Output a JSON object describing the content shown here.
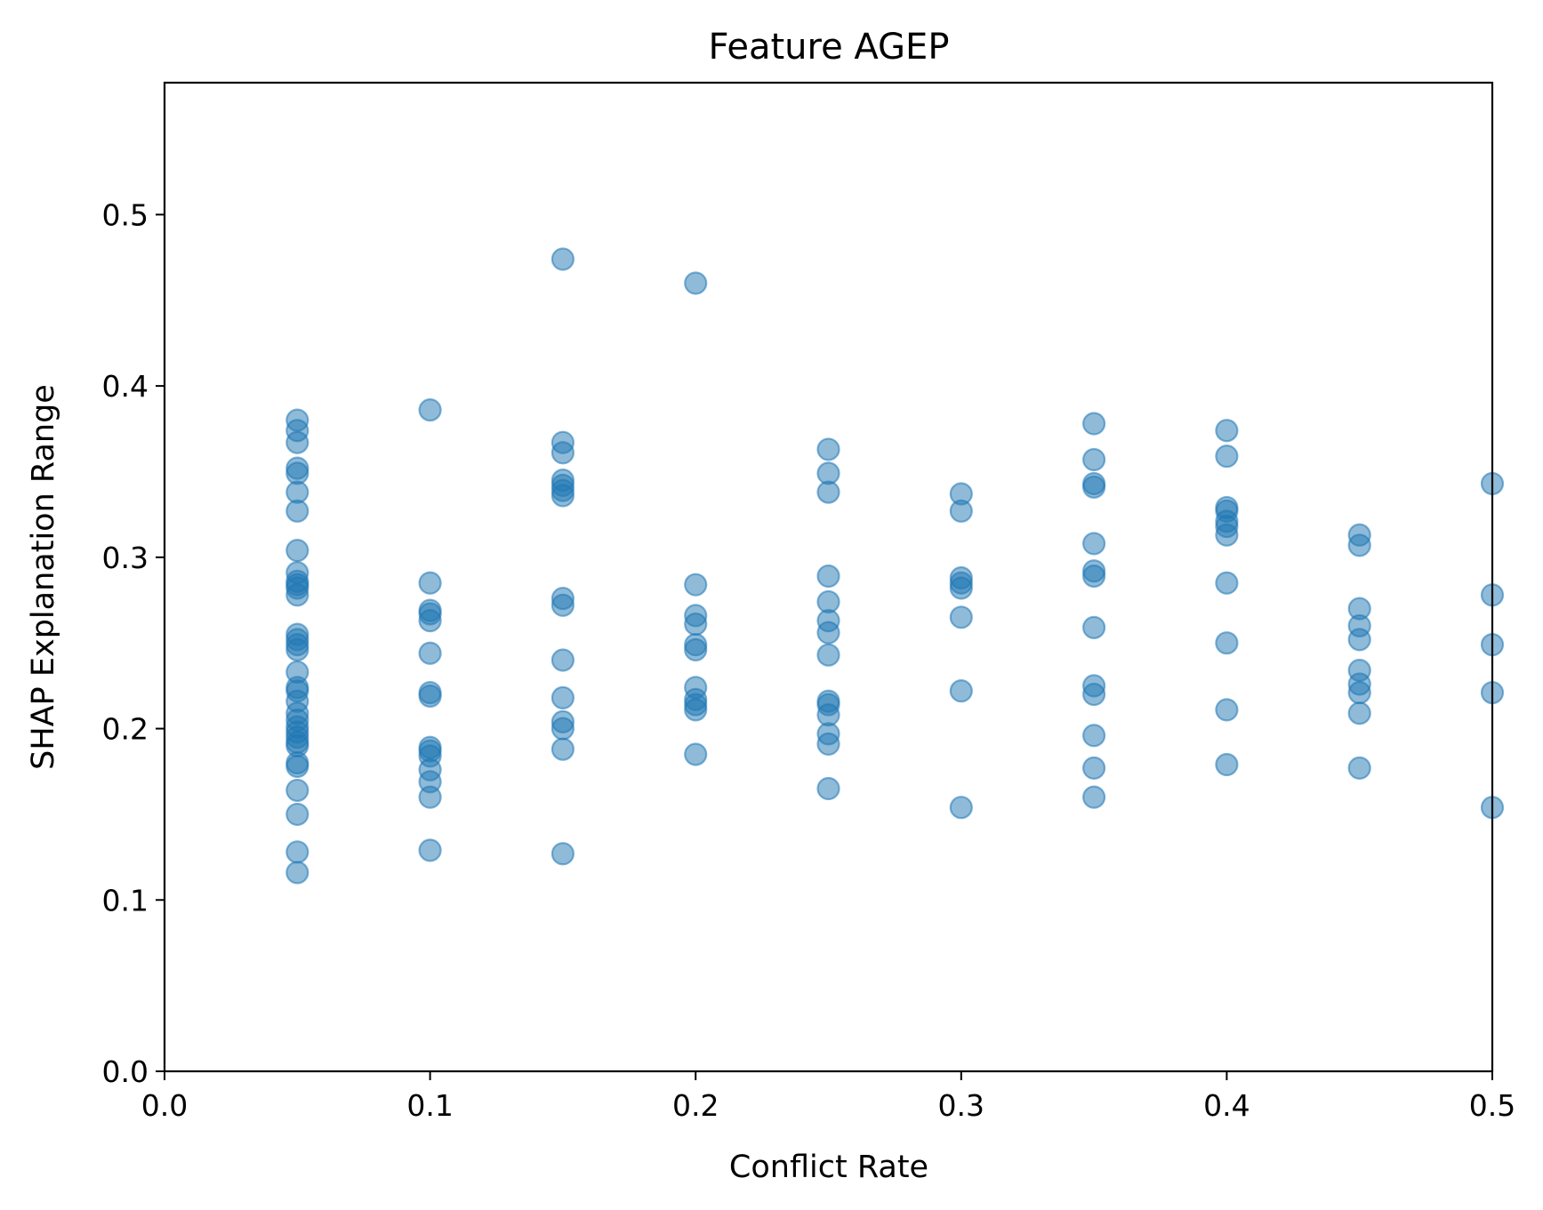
{
  "chart_data": {
    "type": "scatter",
    "title": "Feature AGEP",
    "xlabel": "Conflict Rate",
    "ylabel": "SHAP Explanation Range",
    "xlim": [
      0.0,
      0.5
    ],
    "ylim": [
      0.0,
      0.577
    ],
    "xticks": [
      0.0,
      0.1,
      0.2,
      0.3,
      0.4,
      0.5
    ],
    "yticks": [
      0.0,
      0.1,
      0.2,
      0.3,
      0.4,
      0.5
    ],
    "xtick_labels": [
      "0.0",
      "0.1",
      "0.2",
      "0.3",
      "0.4",
      "0.5"
    ],
    "ytick_labels": [
      "0.0",
      "0.1",
      "0.2",
      "0.3",
      "0.4",
      "0.5"
    ],
    "grid": false,
    "marker_color": "#1f77b4",
    "marker_alpha": 0.5,
    "series": [
      {
        "points": [
          [
            0.05,
            0.38
          ],
          [
            0.05,
            0.374
          ],
          [
            0.05,
            0.367
          ],
          [
            0.05,
            0.352
          ],
          [
            0.05,
            0.349
          ],
          [
            0.05,
            0.338
          ],
          [
            0.05,
            0.327
          ],
          [
            0.05,
            0.304
          ],
          [
            0.05,
            0.291
          ],
          [
            0.05,
            0.286
          ],
          [
            0.05,
            0.284
          ],
          [
            0.05,
            0.282
          ],
          [
            0.05,
            0.278
          ],
          [
            0.05,
            0.255
          ],
          [
            0.05,
            0.252
          ],
          [
            0.05,
            0.249
          ],
          [
            0.05,
            0.246
          ],
          [
            0.05,
            0.233
          ],
          [
            0.05,
            0.224
          ],
          [
            0.05,
            0.222
          ],
          [
            0.05,
            0.216
          ],
          [
            0.05,
            0.209
          ],
          [
            0.05,
            0.205
          ],
          [
            0.05,
            0.201
          ],
          [
            0.05,
            0.198
          ],
          [
            0.05,
            0.195
          ],
          [
            0.05,
            0.192
          ],
          [
            0.05,
            0.19
          ],
          [
            0.05,
            0.18
          ],
          [
            0.05,
            0.178
          ],
          [
            0.05,
            0.164
          ],
          [
            0.05,
            0.15
          ],
          [
            0.05,
            0.128
          ],
          [
            0.05,
            0.116
          ],
          [
            0.1,
            0.386
          ],
          [
            0.1,
            0.285
          ],
          [
            0.1,
            0.269
          ],
          [
            0.1,
            0.267
          ],
          [
            0.1,
            0.263
          ],
          [
            0.1,
            0.244
          ],
          [
            0.1,
            0.221
          ],
          [
            0.1,
            0.219
          ],
          [
            0.1,
            0.189
          ],
          [
            0.1,
            0.187
          ],
          [
            0.1,
            0.184
          ],
          [
            0.1,
            0.176
          ],
          [
            0.1,
            0.169
          ],
          [
            0.1,
            0.16
          ],
          [
            0.1,
            0.129
          ],
          [
            0.15,
            0.474
          ],
          [
            0.15,
            0.367
          ],
          [
            0.15,
            0.361
          ],
          [
            0.15,
            0.345
          ],
          [
            0.15,
            0.342
          ],
          [
            0.15,
            0.339
          ],
          [
            0.15,
            0.336
          ],
          [
            0.15,
            0.276
          ],
          [
            0.15,
            0.272
          ],
          [
            0.15,
            0.24
          ],
          [
            0.15,
            0.218
          ],
          [
            0.15,
            0.204
          ],
          [
            0.15,
            0.2
          ],
          [
            0.15,
            0.188
          ],
          [
            0.15,
            0.127
          ],
          [
            0.2,
            0.46
          ],
          [
            0.2,
            0.284
          ],
          [
            0.2,
            0.266
          ],
          [
            0.2,
            0.261
          ],
          [
            0.2,
            0.249
          ],
          [
            0.2,
            0.246
          ],
          [
            0.2,
            0.224
          ],
          [
            0.2,
            0.217
          ],
          [
            0.2,
            0.214
          ],
          [
            0.2,
            0.211
          ],
          [
            0.2,
            0.185
          ],
          [
            0.25,
            0.363
          ],
          [
            0.25,
            0.349
          ],
          [
            0.25,
            0.338
          ],
          [
            0.25,
            0.289
          ],
          [
            0.25,
            0.274
          ],
          [
            0.25,
            0.263
          ],
          [
            0.25,
            0.256
          ],
          [
            0.25,
            0.243
          ],
          [
            0.25,
            0.216
          ],
          [
            0.25,
            0.214
          ],
          [
            0.25,
            0.208
          ],
          [
            0.25,
            0.197
          ],
          [
            0.25,
            0.191
          ],
          [
            0.25,
            0.165
          ],
          [
            0.3,
            0.337
          ],
          [
            0.3,
            0.327
          ],
          [
            0.3,
            0.288
          ],
          [
            0.3,
            0.285
          ],
          [
            0.3,
            0.282
          ],
          [
            0.3,
            0.265
          ],
          [
            0.3,
            0.222
          ],
          [
            0.3,
            0.154
          ],
          [
            0.35,
            0.378
          ],
          [
            0.35,
            0.357
          ],
          [
            0.35,
            0.343
          ],
          [
            0.35,
            0.341
          ],
          [
            0.35,
            0.308
          ],
          [
            0.35,
            0.292
          ],
          [
            0.35,
            0.289
          ],
          [
            0.35,
            0.259
          ],
          [
            0.35,
            0.225
          ],
          [
            0.35,
            0.22
          ],
          [
            0.35,
            0.196
          ],
          [
            0.35,
            0.177
          ],
          [
            0.35,
            0.16
          ],
          [
            0.4,
            0.374
          ],
          [
            0.4,
            0.359
          ],
          [
            0.4,
            0.329
          ],
          [
            0.4,
            0.327
          ],
          [
            0.4,
            0.321
          ],
          [
            0.4,
            0.318
          ],
          [
            0.4,
            0.313
          ],
          [
            0.4,
            0.285
          ],
          [
            0.4,
            0.25
          ],
          [
            0.4,
            0.211
          ],
          [
            0.4,
            0.179
          ],
          [
            0.45,
            0.313
          ],
          [
            0.45,
            0.307
          ],
          [
            0.45,
            0.27
          ],
          [
            0.45,
            0.26
          ],
          [
            0.45,
            0.252
          ],
          [
            0.45,
            0.234
          ],
          [
            0.45,
            0.226
          ],
          [
            0.45,
            0.221
          ],
          [
            0.45,
            0.209
          ],
          [
            0.45,
            0.177
          ],
          [
            0.5,
            0.343
          ],
          [
            0.5,
            0.278
          ],
          [
            0.5,
            0.249
          ],
          [
            0.5,
            0.221
          ],
          [
            0.5,
            0.154
          ]
        ]
      }
    ]
  }
}
